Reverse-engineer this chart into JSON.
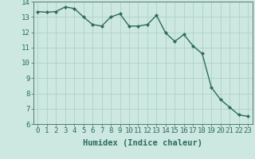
{
  "x": [
    0,
    1,
    2,
    3,
    4,
    5,
    6,
    7,
    8,
    9,
    10,
    11,
    12,
    13,
    14,
    15,
    16,
    17,
    18,
    19,
    20,
    21,
    22,
    23
  ],
  "y": [
    13.35,
    13.3,
    13.35,
    13.65,
    13.55,
    13.0,
    12.5,
    12.4,
    13.0,
    13.2,
    12.4,
    12.4,
    12.5,
    13.1,
    11.95,
    11.4,
    11.85,
    11.1,
    10.6,
    8.4,
    7.6,
    7.1,
    6.6,
    6.5
  ],
  "line_color": "#2e6b5e",
  "marker": "D",
  "marker_size": 2.0,
  "xlabel": "Humidex (Indice chaleur)",
  "xlim": [
    -0.5,
    23.5
  ],
  "ylim": [
    6,
    14
  ],
  "yticks": [
    6,
    7,
    8,
    9,
    10,
    11,
    12,
    13,
    14
  ],
  "xticks": [
    0,
    1,
    2,
    3,
    4,
    5,
    6,
    7,
    8,
    9,
    10,
    11,
    12,
    13,
    14,
    15,
    16,
    17,
    18,
    19,
    20,
    21,
    22,
    23
  ],
  "bg_color": "#cce8e0",
  "grid_color": "#aaccc4",
  "tick_fontsize": 6.5,
  "label_fontsize": 7.5,
  "line_width": 1.0
}
